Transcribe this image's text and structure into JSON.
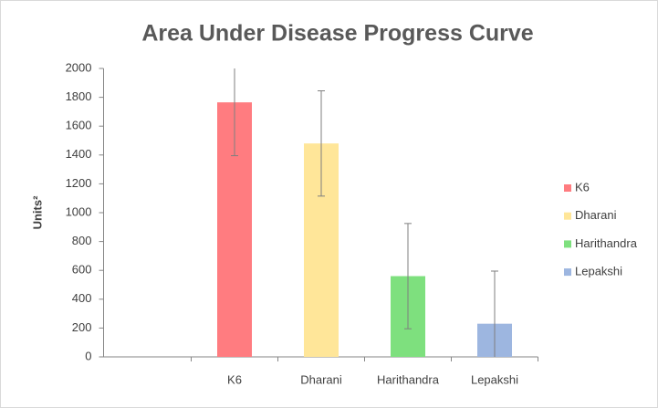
{
  "chart_data": {
    "type": "bar",
    "title": "Area Under Disease Progress Curve",
    "y_label": "Units²",
    "categories": [
      null,
      "K6",
      "Dharani",
      "Harithandra",
      "Lepakshi"
    ],
    "values": [
      null,
      1765,
      1480,
      560,
      230
    ],
    "errors": [
      null,
      370,
      365,
      365,
      365
    ],
    "colors": [
      null,
      "#ff7c80",
      "#ffe699",
      "#7ee07e",
      "#9db6e0"
    ],
    "ylim": [
      0,
      2000
    ],
    "yticks": [
      0,
      200,
      400,
      600,
      800,
      1000,
      1200,
      1400,
      1600,
      1800,
      2000
    ],
    "legend": "right"
  }
}
